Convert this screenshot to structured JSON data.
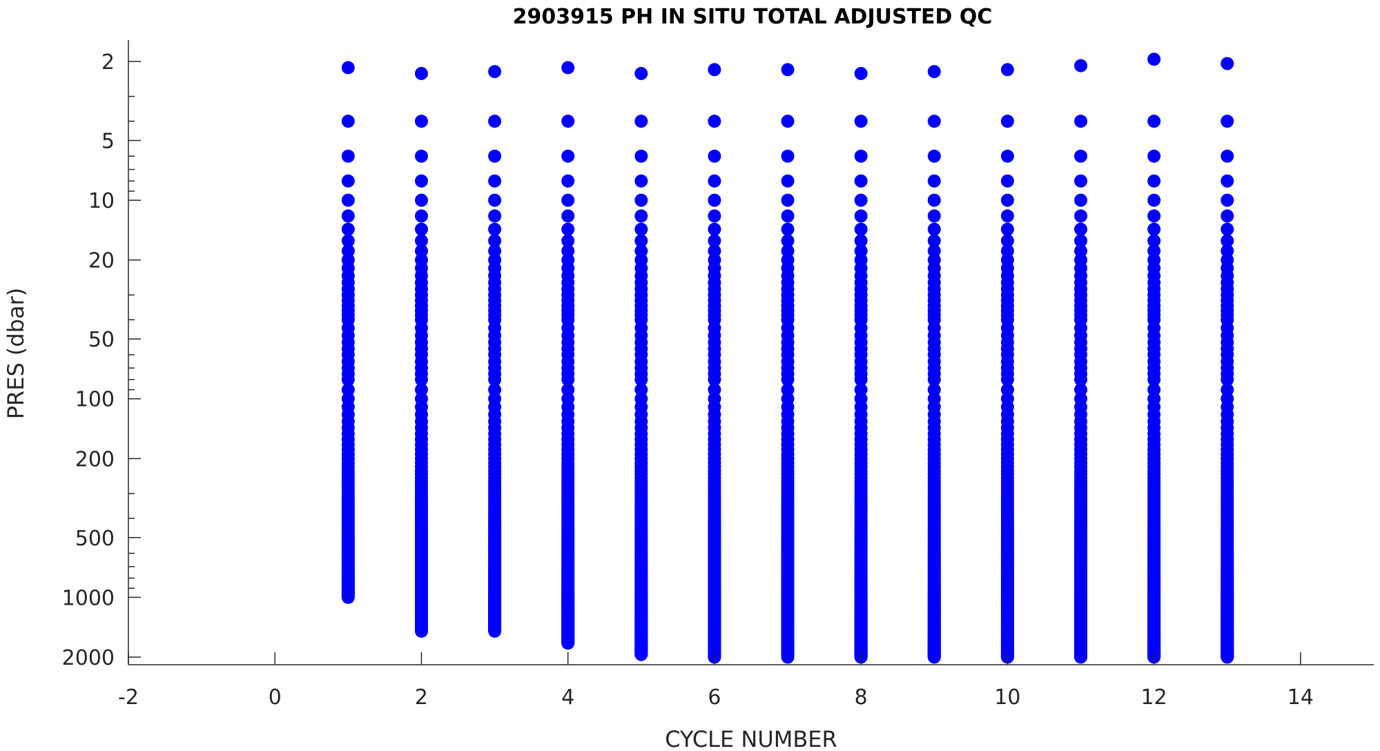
{
  "chart_data": {
    "type": "scatter",
    "title": "2903915  PH IN SITU TOTAL ADJUSTED QC",
    "xlabel": "CYCLE NUMBER",
    "ylabel": "PRES (dbar)",
    "xlim": [
      -2,
      15
    ],
    "ylim": [
      1.65,
      2200
    ],
    "y_scale": "log",
    "y_reversed": true,
    "grid": false,
    "marker_color": "#0000ff",
    "x_ticks": [
      "-2",
      "0",
      "2",
      "4",
      "6",
      "8",
      "10",
      "12",
      "14"
    ],
    "y_ticks": [
      "2",
      "5",
      "10",
      "20",
      "50",
      "100",
      "200",
      "500",
      "1000",
      "2000"
    ],
    "levels_shallow": [
      4,
      6,
      8,
      10,
      12,
      14,
      16,
      18,
      20,
      22,
      24,
      26,
      28,
      30,
      32,
      34,
      36,
      38,
      40,
      44,
      48,
      52,
      56,
      60,
      65,
      70,
      75,
      80,
      90,
      100
    ],
    "profiles": [
      {
        "cycle": 1,
        "top": 2.15,
        "bottom": 1000
      },
      {
        "cycle": 2,
        "top": 2.3,
        "bottom": 1480
      },
      {
        "cycle": 3,
        "top": 2.25,
        "bottom": 1480
      },
      {
        "cycle": 4,
        "top": 2.15,
        "bottom": 1700
      },
      {
        "cycle": 5,
        "top": 2.3,
        "bottom": 1940
      },
      {
        "cycle": 6,
        "top": 2.2,
        "bottom": 2000
      },
      {
        "cycle": 7,
        "top": 2.2,
        "bottom": 2000
      },
      {
        "cycle": 8,
        "top": 2.3,
        "bottom": 2000
      },
      {
        "cycle": 9,
        "top": 2.25,
        "bottom": 2000
      },
      {
        "cycle": 10,
        "top": 2.2,
        "bottom": 2000
      },
      {
        "cycle": 11,
        "top": 2.1,
        "bottom": 2000
      },
      {
        "cycle": 12,
        "top": 1.95,
        "bottom": 2000
      },
      {
        "cycle": 13,
        "top": 2.05,
        "bottom": 2000
      }
    ]
  }
}
